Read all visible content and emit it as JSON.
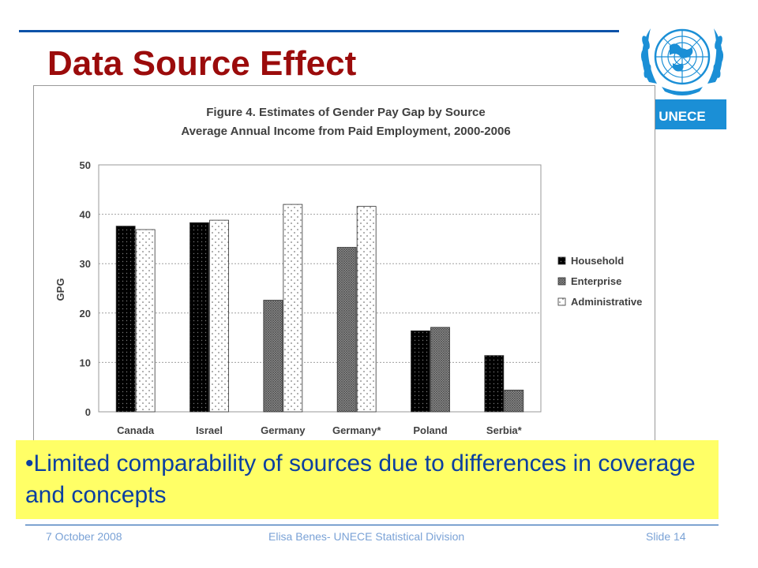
{
  "slide": {
    "title": "Data Source Effect",
    "logo_text": "UNECE",
    "callout_text": "•Limited comparability of sources due to differences in coverage and concepts",
    "footer": {
      "date": "7 October 2008",
      "author": "Elisa Benes- UNECE Statistical Division",
      "slide_number": "Slide 14"
    },
    "colors": {
      "title": "#9b0b0b",
      "rule": "#0b52a8",
      "callout_bg": "#ffff66",
      "callout_text": "#0b3fa1",
      "footer_text": "#7aa2d6",
      "logo_blue": "#1b8fd6"
    }
  },
  "chart_data": {
    "type": "bar",
    "title": "Figure 4. Estimates of Gender Pay Gap by Source",
    "subtitle": "Average Annual Income from Paid Employment, 2000-2006",
    "xlabel": "",
    "ylabel": "GPG",
    "ylim": [
      0,
      50
    ],
    "yticks": [
      0,
      10,
      20,
      30,
      40,
      50
    ],
    "grid": true,
    "legend_position": "right",
    "categories": [
      "Canada",
      "Israel",
      "Germany",
      "Germany*",
      "Poland",
      "Serbia*"
    ],
    "series": [
      {
        "name": "Household",
        "pattern": "solid-dark",
        "values": [
          37.6,
          38.3,
          null,
          null,
          16.4,
          11.4
        ]
      },
      {
        "name": "Enterprise",
        "pattern": "crosshatch",
        "values": [
          null,
          null,
          22.6,
          33.3,
          17.1,
          4.4
        ]
      },
      {
        "name": "Administrative",
        "pattern": "dotted-light",
        "values": [
          36.9,
          38.8,
          42.0,
          41.6,
          null,
          null
        ]
      }
    ]
  }
}
